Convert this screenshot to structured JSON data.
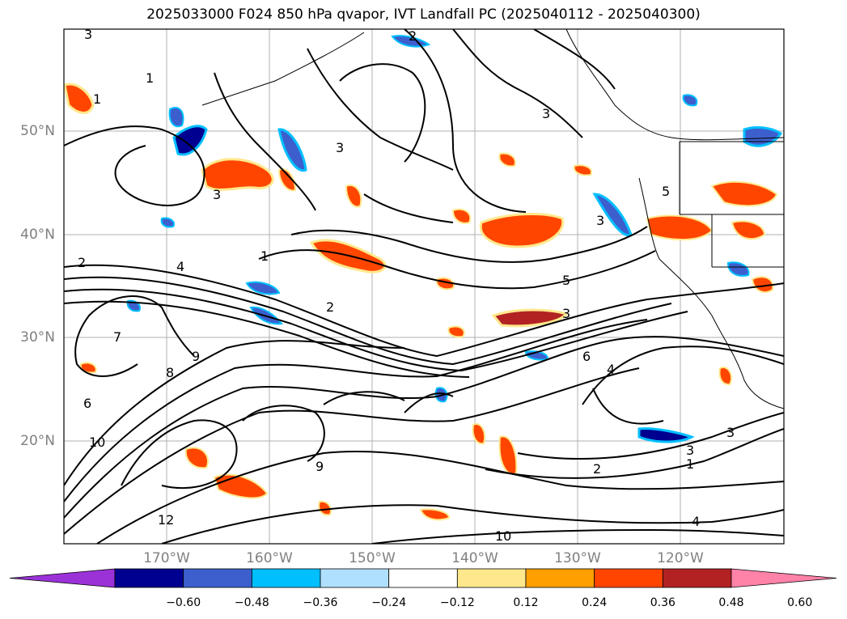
{
  "title": "2025033000 F024 850 hPa qvapor, IVT Landfall PC (2025040112 - 2025040300)",
  "map": {
    "lat_labels": [
      "50°N",
      "40°N",
      "30°N",
      "20°N"
    ],
    "lon_labels": [
      "170°W",
      "160°W",
      "150°W",
      "140°W",
      "130°W",
      "120°W"
    ],
    "gridlines": true,
    "coastlines": true
  },
  "colorbar": {
    "ticks": [
      "−0.60",
      "−0.48",
      "−0.36",
      "−0.24",
      "−0.12",
      "0.12",
      "0.24",
      "0.36",
      "0.48",
      "0.60"
    ],
    "colors": [
      "#9b32d8",
      "#000090",
      "#3c5fcd",
      "#00bfff",
      "#b0e0ff",
      "#ffffff",
      "#ffe88c",
      "#ff9f00",
      "#ff4500",
      "#b22222",
      "#ff82a8"
    ],
    "extend": "both"
  },
  "contour_labels": [
    {
      "text": "3"
    },
    {
      "text": "2"
    },
    {
      "text": "1"
    },
    {
      "text": "1"
    },
    {
      "text": "3"
    },
    {
      "text": "3"
    },
    {
      "text": "3"
    },
    {
      "text": "2"
    },
    {
      "text": "4"
    },
    {
      "text": "1"
    },
    {
      "text": "2"
    },
    {
      "text": "7"
    },
    {
      "text": "10"
    },
    {
      "text": "9"
    },
    {
      "text": "8"
    },
    {
      "text": "9"
    },
    {
      "text": "6"
    },
    {
      "text": "5"
    },
    {
      "text": "3"
    },
    {
      "text": "4"
    },
    {
      "text": "6"
    },
    {
      "text": "3"
    },
    {
      "text": "2"
    },
    {
      "text": "1"
    },
    {
      "text": "3"
    },
    {
      "text": "12"
    },
    {
      "text": "10"
    },
    {
      "text": "4"
    },
    {
      "text": "3"
    },
    {
      "text": "5"
    }
  ]
}
